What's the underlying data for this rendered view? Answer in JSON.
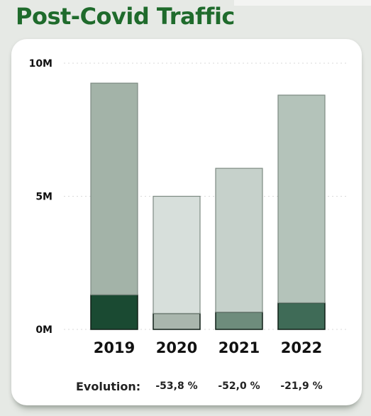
{
  "title": "Post-Covid Traffic",
  "evolution": {
    "label": "Evolution:",
    "values": [
      "-53,8 %",
      "-52,0 %",
      "-21,9 %"
    ]
  },
  "chart_data": {
    "type": "bar",
    "stacked": true,
    "categories": [
      "2019",
      "2020",
      "2021",
      "2022"
    ],
    "series": [
      {
        "values": [
          1.3,
          0.6,
          0.65,
          1.0
        ],
        "colors": [
          "#1a4a32",
          "#a9b6ad",
          "#6e8c7c",
          "#3f6b57"
        ]
      },
      {
        "values": [
          7.95,
          4.4,
          5.4,
          7.8
        ],
        "colors": [
          "#a3b3a8",
          "#d7dfdb",
          "#c6d1cb",
          "#b4c3ba"
        ]
      }
    ],
    "ylim": [
      0,
      10
    ],
    "yticks": [
      {
        "value": 0,
        "label": "0M"
      },
      {
        "value": 5,
        "label": "5M"
      },
      {
        "value": 10,
        "label": "10M"
      }
    ],
    "grid": true
  }
}
